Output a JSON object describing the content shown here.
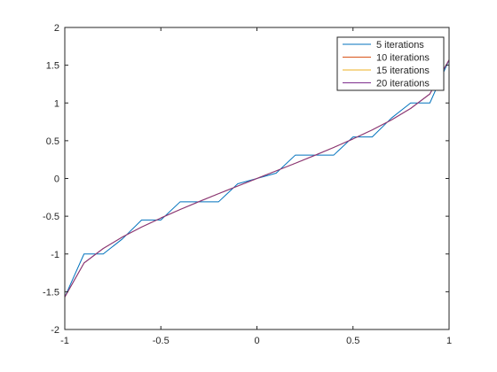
{
  "chart_data": {
    "type": "line",
    "title": "",
    "xlabel": "",
    "ylabel": "",
    "xlim": [
      -1,
      1
    ],
    "ylim": [
      -2,
      2
    ],
    "xticks": [
      -1,
      -0.5,
      0,
      0.5,
      1
    ],
    "xtick_labels": [
      "-1",
      "-0.5",
      "0",
      "0.5",
      "1"
    ],
    "yticks": [
      -2,
      -1.5,
      -1,
      -0.5,
      0,
      0.5,
      1,
      1.5,
      2
    ],
    "ytick_labels": [
      "-2",
      "-1.5",
      "-1",
      "-0.5",
      "0",
      "0.5",
      "1",
      "1.5",
      "2"
    ],
    "grid": false,
    "legend_position": "top-right",
    "series": [
      {
        "name": "5 iterations",
        "color": "#0072BD",
        "x": [
          -1,
          -0.9,
          -0.8,
          -0.7,
          -0.6,
          -0.5,
          -0.4,
          -0.3,
          -0.2,
          -0.1,
          0,
          0.1,
          0.2,
          0.3,
          0.4,
          0.5,
          0.6,
          0.7,
          0.8,
          0.9,
          1
        ],
        "y": [
          -1.57,
          -1.0,
          -1.0,
          -0.8,
          -0.55,
          -0.55,
          -0.31,
          -0.31,
          -0.31,
          -0.07,
          0.0,
          0.07,
          0.31,
          0.31,
          0.31,
          0.55,
          0.55,
          0.8,
          1.0,
          1.0,
          1.57
        ]
      },
      {
        "name": "10 iterations",
        "color": "#D95319",
        "x": [
          -1,
          -0.9,
          -0.8,
          -0.7,
          -0.6,
          -0.5,
          -0.4,
          -0.3,
          -0.2,
          -0.1,
          0,
          0.1,
          0.2,
          0.3,
          0.4,
          0.5,
          0.6,
          0.7,
          0.8,
          0.9,
          1
        ],
        "y": [
          -1.5708,
          -1.1198,
          -0.9273,
          -0.7754,
          -0.6435,
          -0.5236,
          -0.4115,
          -0.3047,
          -0.2014,
          -0.1002,
          0.0,
          0.1002,
          0.2014,
          0.3047,
          0.4115,
          0.5236,
          0.6435,
          0.7754,
          0.9273,
          1.1198,
          1.5708
        ]
      },
      {
        "name": "15 iterations",
        "color": "#EDB120",
        "x": [
          -1,
          -0.9,
          -0.8,
          -0.7,
          -0.6,
          -0.5,
          -0.4,
          -0.3,
          -0.2,
          -0.1,
          0,
          0.1,
          0.2,
          0.3,
          0.4,
          0.5,
          0.6,
          0.7,
          0.8,
          0.9,
          1
        ],
        "y": [
          -1.5708,
          -1.1198,
          -0.9273,
          -0.7754,
          -0.6435,
          -0.5236,
          -0.4115,
          -0.3047,
          -0.2014,
          -0.1002,
          0.0,
          0.1002,
          0.2014,
          0.3047,
          0.4115,
          0.5236,
          0.6435,
          0.7754,
          0.9273,
          1.1198,
          1.5708
        ]
      },
      {
        "name": "20 iterations",
        "color": "#7E2F8E",
        "x": [
          -1,
          -0.9,
          -0.8,
          -0.7,
          -0.6,
          -0.5,
          -0.4,
          -0.3,
          -0.2,
          -0.1,
          0,
          0.1,
          0.2,
          0.3,
          0.4,
          0.5,
          0.6,
          0.7,
          0.8,
          0.9,
          1
        ],
        "y": [
          -1.5708,
          -1.1198,
          -0.9273,
          -0.7754,
          -0.6435,
          -0.5236,
          -0.4115,
          -0.3047,
          -0.2014,
          -0.1002,
          0.0,
          0.1002,
          0.2014,
          0.3047,
          0.4115,
          0.5236,
          0.6435,
          0.7754,
          0.9273,
          1.1198,
          1.5708
        ]
      }
    ]
  }
}
